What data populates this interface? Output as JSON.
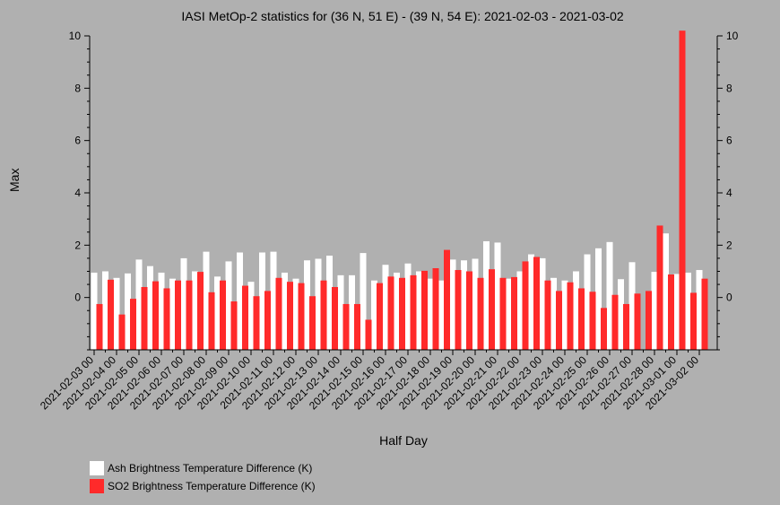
{
  "chart_data": {
    "type": "bar",
    "title": "IASI MetOp-2 statistics for (36 N, 51 E) - (39 N, 54 E): 2021-02-03 - 2021-03-02",
    "xlabel": "Half Day",
    "ylabel": "Max",
    "ylim": [
      -2,
      10
    ],
    "yticks": [
      0,
      2,
      4,
      6,
      8,
      10
    ],
    "x_tick_labels": [
      "2021-02-03 00",
      "2021-02-04 00",
      "2021-02-05 00",
      "2021-02-06 00",
      "2021-02-07 00",
      "2021-02-08 00",
      "2021-02-09 00",
      "2021-02-10 00",
      "2021-02-11 00",
      "2021-02-12 00",
      "2021-02-13 00",
      "2021-02-14 00",
      "2021-02-15 00",
      "2021-02-16 00",
      "2021-02-17 00",
      "2021-02-18 00",
      "2021-02-19 00",
      "2021-02-20 00",
      "2021-02-21 00",
      "2021-02-22 00",
      "2021-02-23 00",
      "2021-02-24 00",
      "2021-02-25 00",
      "2021-02-26 00",
      "2021-02-27 00",
      "2021-02-28 00",
      "2021-03-01 00",
      "2021-03-02 00"
    ],
    "grid": false,
    "legend_position": "bottom-left",
    "series": [
      {
        "name": "Ash Brightness Temperature Difference (K)",
        "color": "#ffffff",
        "values": [
          0.95,
          1.0,
          0.75,
          0.92,
          1.45,
          1.2,
          0.95,
          0.72,
          1.5,
          1.0,
          1.75,
          0.8,
          1.38,
          1.72,
          0.6,
          1.72,
          1.75,
          0.95,
          0.72,
          1.42,
          1.48,
          1.6,
          0.85,
          0.85,
          1.7,
          0.65,
          1.25,
          0.95,
          1.3,
          1.0,
          0.72,
          0.65,
          1.45,
          1.42,
          1.48,
          2.15,
          2.1,
          0.72,
          1.0,
          1.65,
          1.5,
          0.75,
          0.65,
          1.0,
          1.65,
          1.88,
          2.12,
          0.7,
          1.35,
          null,
          0.98,
          2.45,
          0.9,
          0.95,
          1.05
        ]
      },
      {
        "name": "SO2 Brightness Temperature Difference (K)",
        "color": "#ff2a2a",
        "values": [
          -0.25,
          0.68,
          -0.65,
          -0.05,
          0.4,
          0.62,
          0.35,
          0.65,
          0.65,
          0.98,
          0.2,
          0.65,
          -0.15,
          0.45,
          0.05,
          0.25,
          0.75,
          0.6,
          0.55,
          0.05,
          0.65,
          0.4,
          -0.25,
          -0.25,
          -0.85,
          0.55,
          0.8,
          0.75,
          0.85,
          1.02,
          1.12,
          1.82,
          1.05,
          1.0,
          0.75,
          1.08,
          0.75,
          0.78,
          1.38,
          1.55,
          0.65,
          0.25,
          0.58,
          0.35,
          0.22,
          -0.4,
          0.1,
          -0.25,
          0.15,
          0.25,
          2.75,
          0.88,
          10.2,
          0.18,
          0.72
        ]
      }
    ]
  }
}
